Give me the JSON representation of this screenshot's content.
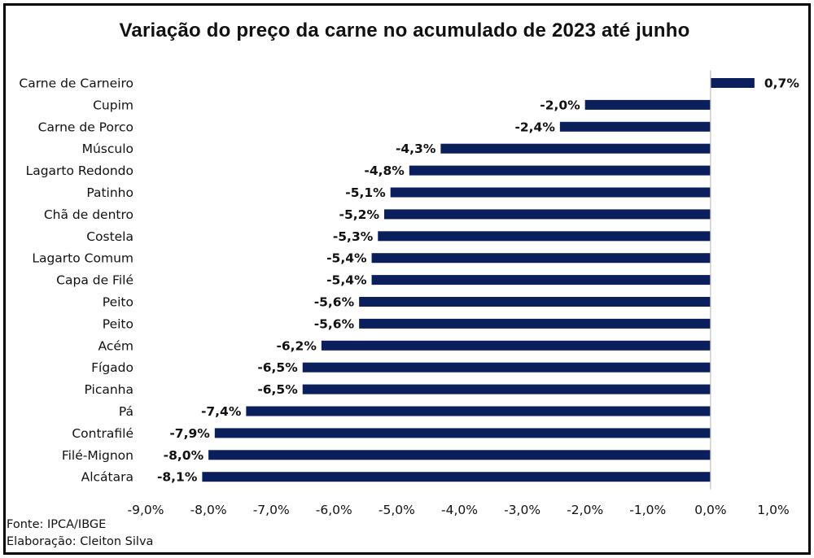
{
  "chart_data": {
    "type": "bar",
    "orientation": "horizontal",
    "title": "Variação do preço da carne no acumulado de 2023 até junho",
    "categories": [
      "Carne de Carneiro",
      "Cupim",
      "Carne de Porco",
      "Músculo",
      "Lagarto Redondo",
      "Patinho",
      "Chã de dentro",
      "Costela",
      "Lagarto Comum",
      "Capa de Filé",
      "Peito",
      "Peito",
      "Acém",
      "Fígado",
      "Picanha",
      "Pá",
      "Contrafilé",
      "Filé-Mignon",
      "Alcátara"
    ],
    "values": [
      0.7,
      -2.0,
      -2.4,
      -4.3,
      -4.8,
      -5.1,
      -5.2,
      -5.3,
      -5.4,
      -5.4,
      -5.6,
      -5.6,
      -6.2,
      -6.5,
      -6.5,
      -7.4,
      -7.9,
      -8.0,
      -8.1
    ],
    "data_labels": [
      "0,7%",
      "-2,0%",
      "-2,4%",
      "-4,3%",
      "-4,8%",
      "-5,1%",
      "-5,2%",
      "-5,3%",
      "-5,4%",
      "-5,4%",
      "-5,6%",
      "-5,6%",
      "-6,2%",
      "-6,5%",
      "-6,5%",
      "-7,4%",
      "-7,9%",
      "-8,0%",
      "-8,1%"
    ],
    "xlim": [
      -9.0,
      1.0
    ],
    "xticks": [
      -9.0,
      -8.0,
      -7.0,
      -6.0,
      -5.0,
      -4.0,
      -3.0,
      -2.0,
      -1.0,
      0.0,
      1.0
    ],
    "xtick_labels": [
      "-9,0%",
      "-8,0%",
      "-7,0%",
      "-6,0%",
      "-5,0%",
      "-4,0%",
      "-3,0%",
      "-2,0%",
      "-1,0%",
      "0,0%",
      "1,0%"
    ],
    "xlabel": "",
    "ylabel": "",
    "grid": false,
    "legend": "none",
    "bar_color": "#0a1f5c",
    "axis_color": "#bfbfbf"
  },
  "footer": {
    "source": "Fonte: IPCA/IBGE",
    "credit": "Elaboração: Cleiton Silva"
  }
}
